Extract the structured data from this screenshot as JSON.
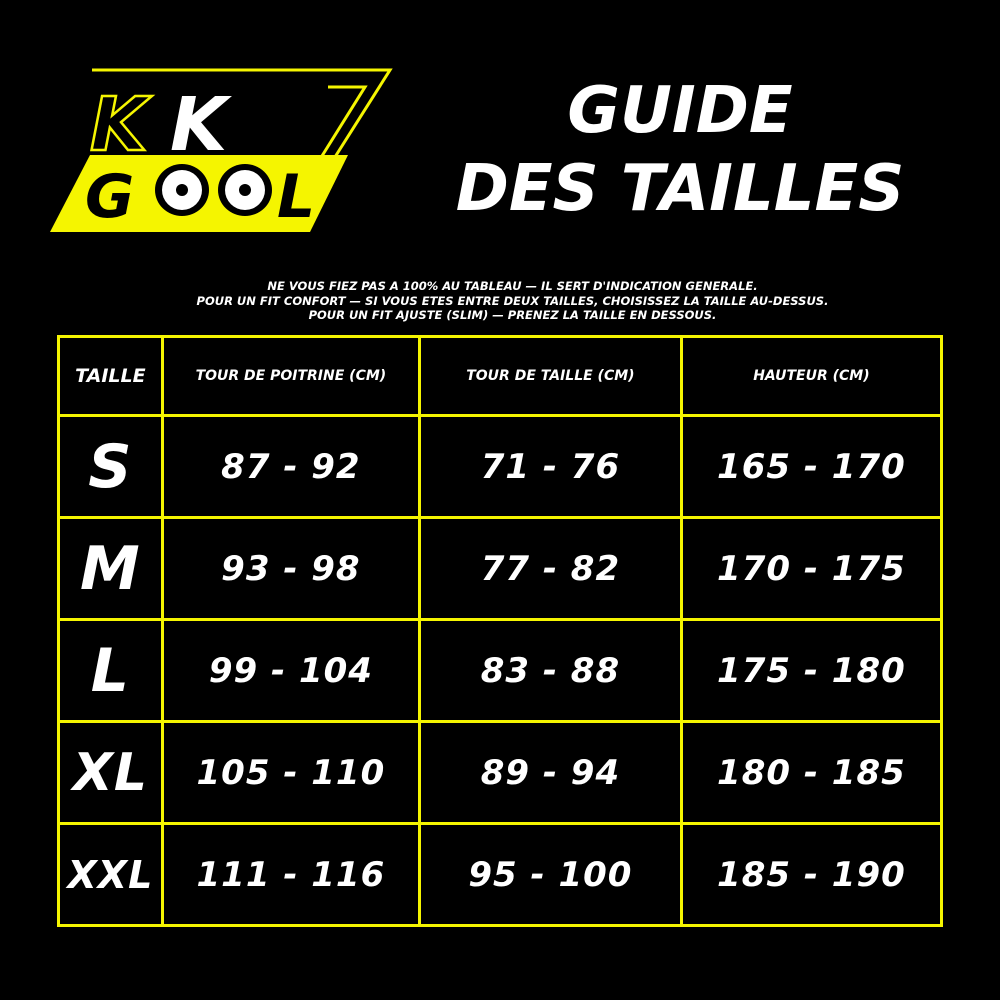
{
  "brand": {
    "logo_text_top": "KK",
    "logo_text_bottom": "GOOL",
    "accent_color": "#f5f500"
  },
  "title": {
    "line1": "GUIDE",
    "line2": "DES TAILLES"
  },
  "notes": [
    "NE VOUS FIEZ PAS A 100% AU TABLEAU — IL SERT D'INDICATION GENERALE.",
    "POUR UN FIT CONFORT — SI VOUS ETES ENTRE DEUX TAILLES, CHOISISSEZ LA TAILLE AU-DESSUS.",
    "POUR UN FIT AJUSTE (SLIM) — PRENEZ LA TAILLE EN DESSOUS."
  ],
  "table": {
    "headers": [
      "TAILLE",
      "TOUR DE POITRINE (CM)",
      "TOUR DE TAILLE (CM)",
      "HAUTEUR (CM)"
    ],
    "rows": [
      [
        "S",
        "87 - 92",
        "71 - 76",
        "165 - 170"
      ],
      [
        "M",
        "93 - 98",
        "77 - 82",
        "170 - 175"
      ],
      [
        "L",
        "99 - 104",
        "83 - 88",
        "175 - 180"
      ],
      [
        "XL",
        "105 - 110",
        "89 - 94",
        "180 - 185"
      ],
      [
        "XXL",
        "111 - 116",
        "95 - 100",
        "185 - 190"
      ]
    ]
  }
}
